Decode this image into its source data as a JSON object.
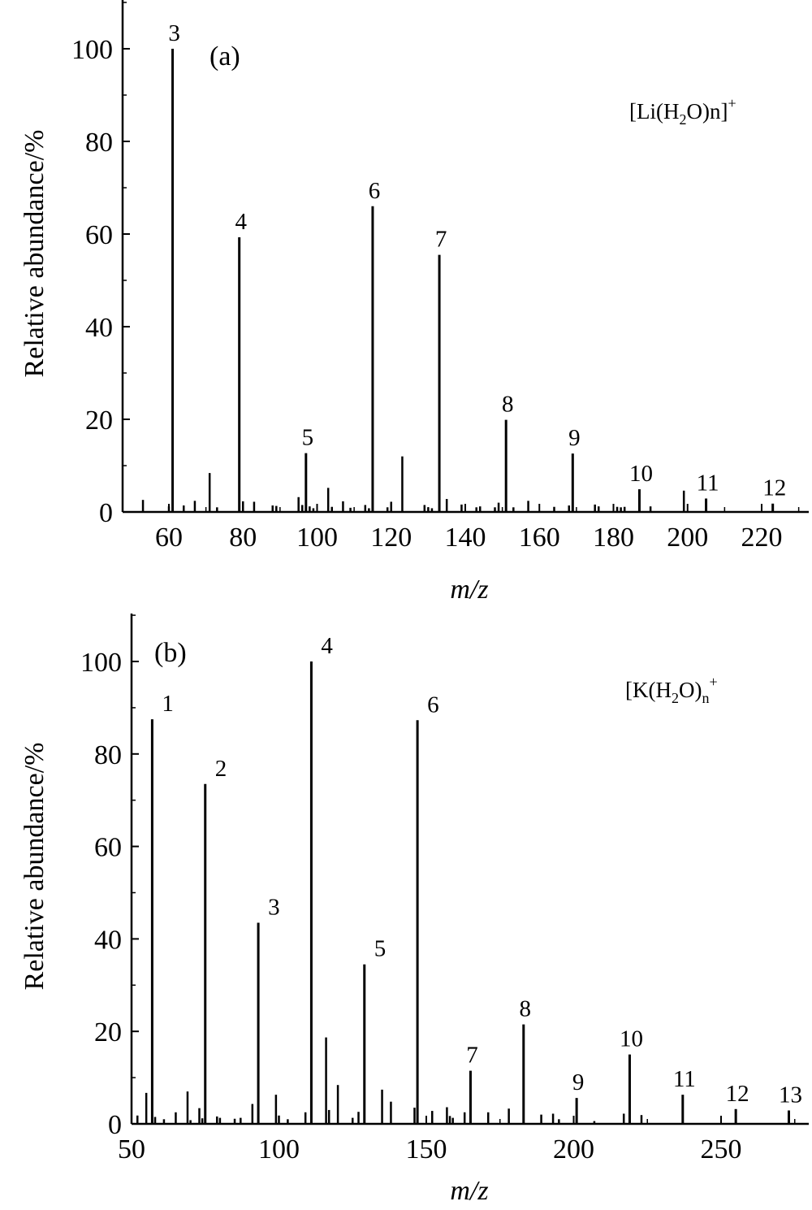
{
  "chart_data": [
    {
      "type": "bar",
      "panel_label": "(a)",
      "species_label": {
        "base": "[Li(H",
        "sub": "2",
        "mid": "O)n]",
        "sup": "+",
        "sub2": ""
      },
      "xlabel": "m/z",
      "ylabel": "Relative abundance/%",
      "xlim": [
        50,
        230
      ],
      "ylim": [
        0,
        110
      ],
      "x_ticks": [
        60,
        80,
        100,
        120,
        140,
        160,
        180,
        200,
        220
      ],
      "y_ticks": [
        0,
        20,
        40,
        60,
        80,
        100
      ],
      "labeled_peaks": [
        {
          "n": "3",
          "mz": 61,
          "abundance": 100
        },
        {
          "n": "4",
          "mz": 79,
          "abundance": 59.3
        },
        {
          "n": "5",
          "mz": 97,
          "abundance": 12.7
        },
        {
          "n": "6",
          "mz": 115,
          "abundance": 66
        },
        {
          "n": "7",
          "mz": 133,
          "abundance": 55.5
        },
        {
          "n": "8",
          "mz": 151,
          "abundance": 19.9
        },
        {
          "n": "9",
          "mz": 169,
          "abundance": 12.6
        },
        {
          "n": "10",
          "mz": 187,
          "abundance": 4.9
        },
        {
          "n": "11",
          "mz": 205,
          "abundance": 2.9
        },
        {
          "n": "12",
          "mz": 223,
          "abundance": 1.8
        }
      ],
      "minor_peaks": [
        {
          "mz": 53,
          "abundance": 2.6
        },
        {
          "mz": 60,
          "abundance": 1.2
        },
        {
          "mz": 64,
          "abundance": 1.4
        },
        {
          "mz": 67,
          "abundance": 2.4
        },
        {
          "mz": 71,
          "abundance": 8.4
        },
        {
          "mz": 73,
          "abundance": 1.0
        },
        {
          "mz": 80,
          "abundance": 2.3
        },
        {
          "mz": 83,
          "abundance": 2.2
        },
        {
          "mz": 88,
          "abundance": 1.4
        },
        {
          "mz": 89,
          "abundance": 1.3
        },
        {
          "mz": 95,
          "abundance": 3.2
        },
        {
          "mz": 96,
          "abundance": 1.5
        },
        {
          "mz": 98,
          "abundance": 1.2
        },
        {
          "mz": 99,
          "abundance": 0.8
        },
        {
          "mz": 103,
          "abundance": 5.2
        },
        {
          "mz": 104,
          "abundance": 1.1
        },
        {
          "mz": 107,
          "abundance": 2.3
        },
        {
          "mz": 109,
          "abundance": 0.9
        },
        {
          "mz": 113,
          "abundance": 1.5
        },
        {
          "mz": 114,
          "abundance": 0.8
        },
        {
          "mz": 119,
          "abundance": 1.0
        },
        {
          "mz": 120,
          "abundance": 2.2
        },
        {
          "mz": 123,
          "abundance": 12.0
        },
        {
          "mz": 129,
          "abundance": 1.5
        },
        {
          "mz": 130,
          "abundance": 1.0
        },
        {
          "mz": 131,
          "abundance": 0.8
        },
        {
          "mz": 135,
          "abundance": 2.8
        },
        {
          "mz": 139,
          "abundance": 1.6
        },
        {
          "mz": 143,
          "abundance": 1.0
        },
        {
          "mz": 144,
          "abundance": 1.2
        },
        {
          "mz": 148,
          "abundance": 1.0
        },
        {
          "mz": 149,
          "abundance": 2.0
        },
        {
          "mz": 153,
          "abundance": 1.0
        },
        {
          "mz": 157,
          "abundance": 2.4
        },
        {
          "mz": 164,
          "abundance": 1.1
        },
        {
          "mz": 168,
          "abundance": 1.4
        },
        {
          "mz": 175,
          "abundance": 1.6
        },
        {
          "mz": 176,
          "abundance": 1.2
        },
        {
          "mz": 181,
          "abundance": 1.1
        },
        {
          "mz": 182,
          "abundance": 1.0
        },
        {
          "mz": 183,
          "abundance": 1.1
        },
        {
          "mz": 190,
          "abundance": 1.2
        },
        {
          "mz": 199,
          "abundance": 4.6
        }
      ]
    },
    {
      "type": "bar",
      "panel_label": "(b)",
      "species_label": {
        "base": "[K(H",
        "sub": "2",
        "mid": "O)",
        "sup": "+",
        "sub2": "n"
      },
      "xlabel": "m/z",
      "ylabel": "Relative abundance/%",
      "xlim": [
        50,
        280
      ],
      "ylim": [
        0,
        110
      ],
      "x_ticks": [
        50,
        100,
        150,
        200,
        250
      ],
      "y_ticks": [
        0,
        20,
        40,
        60,
        80,
        100
      ],
      "labeled_peaks": [
        {
          "n": "1",
          "mz": 57,
          "abundance": 87.5
        },
        {
          "n": "2",
          "mz": 75,
          "abundance": 73.5
        },
        {
          "n": "3",
          "mz": 93,
          "abundance": 43.5
        },
        {
          "n": "4",
          "mz": 111,
          "abundance": 100
        },
        {
          "n": "5",
          "mz": 129,
          "abundance": 34.5
        },
        {
          "n": "6",
          "mz": 147,
          "abundance": 87.3
        },
        {
          "n": "7",
          "mz": 165,
          "abundance": 11.5
        },
        {
          "n": "8",
          "mz": 183,
          "abundance": 21.5
        },
        {
          "n": "9",
          "mz": 201,
          "abundance": 5.6
        },
        {
          "n": "10",
          "mz": 219,
          "abundance": 15.0
        },
        {
          "n": "11",
          "mz": 237,
          "abundance": 6.3
        },
        {
          "n": "12",
          "mz": 255,
          "abundance": 3.2
        },
        {
          "n": "13",
          "mz": 273,
          "abundance": 2.9
        }
      ],
      "minor_peaks": [
        {
          "mz": 52,
          "abundance": 1.8
        },
        {
          "mz": 55,
          "abundance": 6.7
        },
        {
          "mz": 58,
          "abundance": 1.5
        },
        {
          "mz": 61,
          "abundance": 1.0
        },
        {
          "mz": 65,
          "abundance": 2.5
        },
        {
          "mz": 69,
          "abundance": 7.0
        },
        {
          "mz": 70,
          "abundance": 0.8
        },
        {
          "mz": 73,
          "abundance": 3.4
        },
        {
          "mz": 74,
          "abundance": 1.2
        },
        {
          "mz": 79,
          "abundance": 1.6
        },
        {
          "mz": 80,
          "abundance": 1.3
        },
        {
          "mz": 85,
          "abundance": 1.1
        },
        {
          "mz": 87,
          "abundance": 1.3
        },
        {
          "mz": 91,
          "abundance": 4.3
        },
        {
          "mz": 99,
          "abundance": 6.3
        },
        {
          "mz": 100,
          "abundance": 1.8
        },
        {
          "mz": 103,
          "abundance": 1.0
        },
        {
          "mz": 109,
          "abundance": 2.5
        },
        {
          "mz": 116,
          "abundance": 18.7
        },
        {
          "mz": 117,
          "abundance": 3.0
        },
        {
          "mz": 120,
          "abundance": 8.4
        },
        {
          "mz": 125,
          "abundance": 1.3
        },
        {
          "mz": 127,
          "abundance": 2.6
        },
        {
          "mz": 135,
          "abundance": 7.4
        },
        {
          "mz": 138,
          "abundance": 4.8
        },
        {
          "mz": 146,
          "abundance": 3.5
        },
        {
          "mz": 152,
          "abundance": 2.8
        },
        {
          "mz": 157,
          "abundance": 3.6
        },
        {
          "mz": 158,
          "abundance": 1.7
        },
        {
          "mz": 159,
          "abundance": 1.3
        },
        {
          "mz": 163,
          "abundance": 2.5
        },
        {
          "mz": 171,
          "abundance": 2.5
        },
        {
          "mz": 178,
          "abundance": 3.3
        },
        {
          "mz": 189,
          "abundance": 2.0
        },
        {
          "mz": 193,
          "abundance": 2.2
        },
        {
          "mz": 195,
          "abundance": 1.0
        },
        {
          "mz": 207,
          "abundance": 0.6
        },
        {
          "mz": 217,
          "abundance": 2.2
        },
        {
          "mz": 223,
          "abundance": 1.9
        }
      ]
    }
  ]
}
